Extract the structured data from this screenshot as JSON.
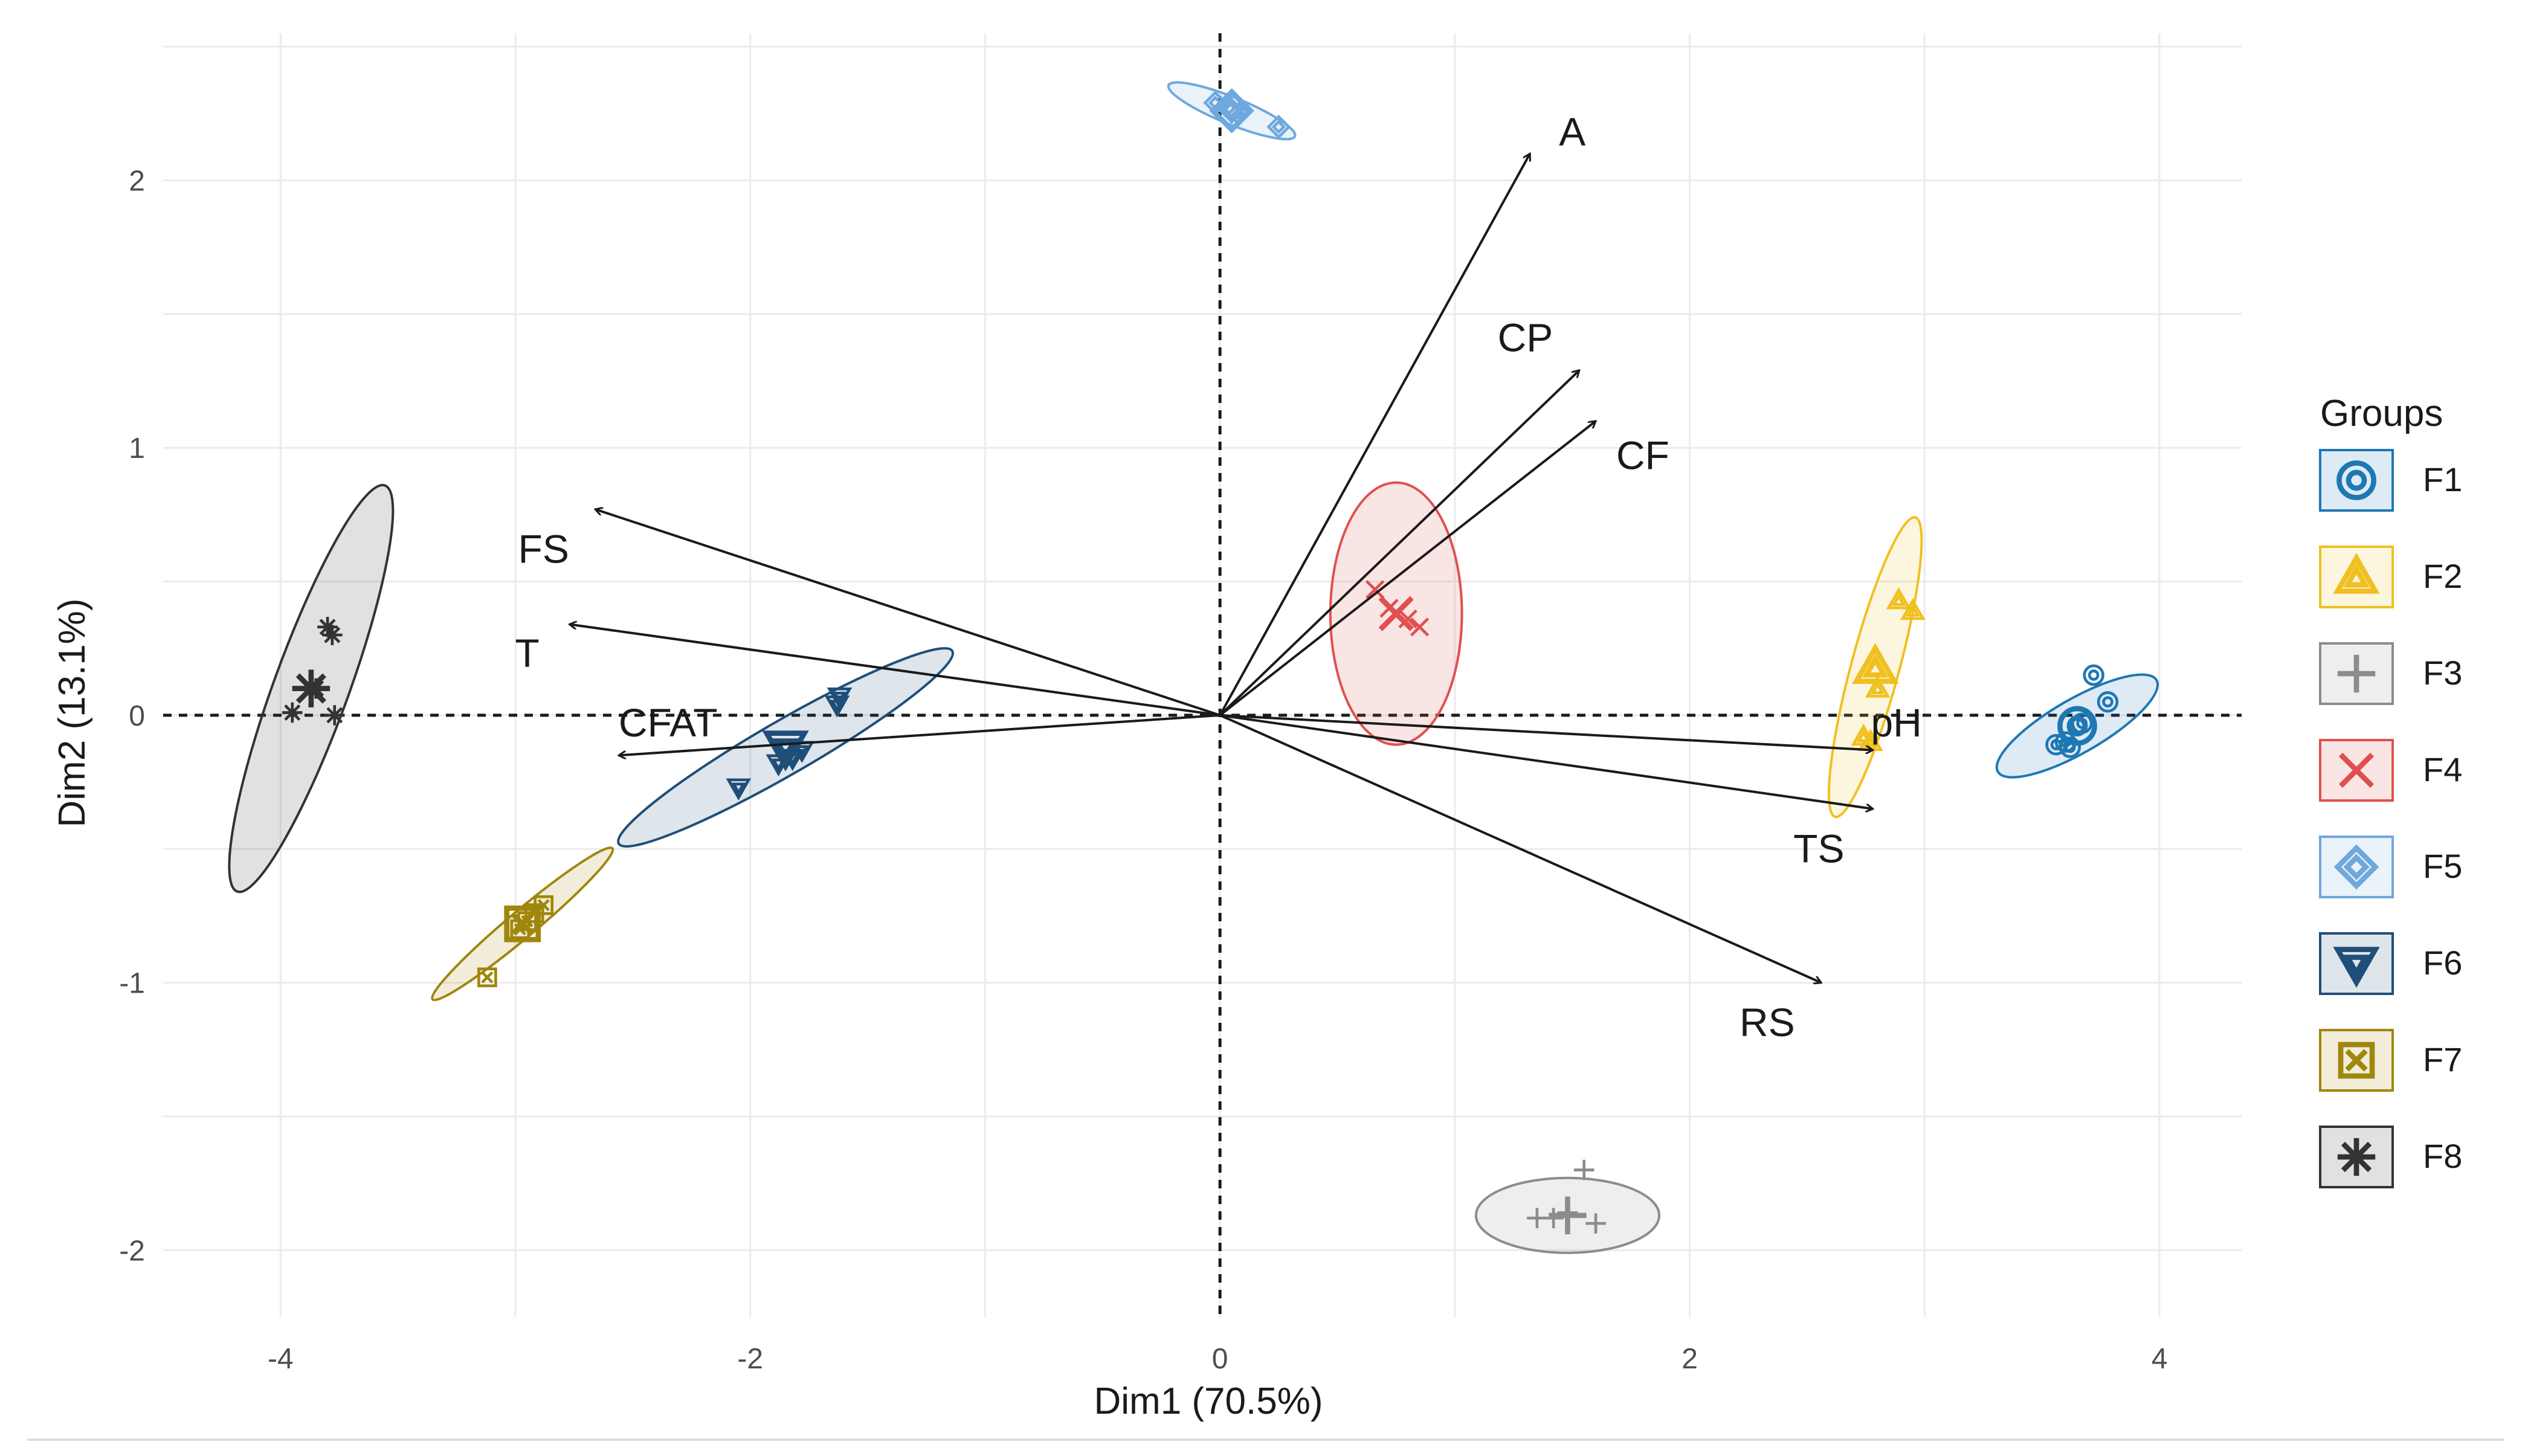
{
  "chart_data": {
    "type": "scatter",
    "subtype": "pca-biplot",
    "title": "",
    "xlabel": "Dim1 (70.5%)",
    "ylabel": "Dim2 (13.1%)",
    "xlim": [
      -4.5,
      4.35
    ],
    "ylim": [
      -2.25,
      2.55
    ],
    "x_ticks": [
      -4,
      -2,
      0,
      2,
      4
    ],
    "y_ticks": [
      -2,
      -1,
      0,
      1,
      2
    ],
    "x_tick_labels": [
      "-4",
      "-2",
      "0",
      "2",
      "4"
    ],
    "y_tick_labels": [
      "-2",
      "-1",
      "0",
      "1",
      "2"
    ],
    "grid": true,
    "reference_lines": {
      "x": 0,
      "y": 0,
      "style": "dashed"
    },
    "legend": {
      "title": "Groups",
      "placement": "right",
      "items": [
        {
          "label": "F1",
          "color": "#1f77b4",
          "symbol": "circle-plus"
        },
        {
          "label": "F2",
          "color": "#f0c020",
          "symbol": "triangle"
        },
        {
          "label": "F3",
          "color": "#8c8c8c",
          "symbol": "plus"
        },
        {
          "label": "F4",
          "color": "#e05050",
          "symbol": "cross"
        },
        {
          "label": "F5",
          "color": "#6fa8dc",
          "symbol": "diamond"
        },
        {
          "label": "F6",
          "color": "#1f4e79",
          "symbol": "triangle-down"
        },
        {
          "label": "F7",
          "color": "#a0860a",
          "symbol": "square-x"
        },
        {
          "label": "F8",
          "color": "#333333",
          "symbol": "asterisk"
        }
      ]
    },
    "variables": [
      {
        "name": "A",
        "x": 1.32,
        "y": 2.1,
        "label_x": 1.5,
        "label_y": 2.18
      },
      {
        "name": "CP",
        "x": 1.53,
        "y": 1.29,
        "label_x": 1.3,
        "label_y": 1.41
      },
      {
        "name": "CF",
        "x": 1.6,
        "y": 1.1,
        "label_x": 1.8,
        "label_y": 0.97
      },
      {
        "name": "FS",
        "x": -2.66,
        "y": 0.77,
        "label_x": -2.88,
        "label_y": 0.62
      },
      {
        "name": "T",
        "x": -2.77,
        "y": 0.34,
        "label_x": -2.95,
        "label_y": 0.23
      },
      {
        "name": "CFAT",
        "x": -2.56,
        "y": -0.15,
        "label_x": -2.35,
        "label_y": -0.03
      },
      {
        "name": "pH",
        "x": 2.78,
        "y": -0.13,
        "label_x": 2.88,
        "label_y": -0.03
      },
      {
        "name": "TS",
        "x": 2.78,
        "y": -0.35,
        "label_x": 2.55,
        "label_y": -0.5
      },
      {
        "name": "RS",
        "x": 2.56,
        "y": -1.0,
        "label_x": 2.33,
        "label_y": -1.15
      }
    ],
    "groups": [
      {
        "name": "F1",
        "center": [
          3.65,
          -0.04
        ],
        "ellipse": {
          "rx": 0.39,
          "ry": 0.1,
          "angle": 30
        },
        "points": [
          [
            3.56,
            -0.11
          ],
          [
            3.6,
            -0.1
          ],
          [
            3.62,
            -0.12
          ],
          [
            3.67,
            -0.03
          ],
          [
            3.72,
            0.15
          ],
          [
            3.78,
            0.05
          ]
        ]
      },
      {
        "name": "F2",
        "center": [
          2.79,
          0.18
        ],
        "ellipse": {
          "rx": 0.66,
          "ry": 0.09,
          "angle": 75
        },
        "points": [
          [
            2.74,
            -0.08
          ],
          [
            2.77,
            -0.1
          ],
          [
            2.8,
            0.1
          ],
          [
            2.89,
            0.43
          ],
          [
            2.95,
            0.39
          ]
        ]
      },
      {
        "name": "F3",
        "center": [
          1.48,
          -1.87
        ],
        "ellipse": {
          "rx": 0.39,
          "ry": 0.14,
          "angle": 0
        },
        "points": [
          [
            1.35,
            -1.88
          ],
          [
            1.42,
            -1.88
          ],
          [
            1.48,
            -1.86
          ],
          [
            1.55,
            -1.7
          ],
          [
            1.6,
            -1.9
          ]
        ]
      },
      {
        "name": "F4",
        "center": [
          0.75,
          0.38
        ],
        "ellipse": {
          "rx": 0.28,
          "ry": 0.49,
          "angle": 0
        },
        "points": [
          [
            0.66,
            0.47
          ],
          [
            0.72,
            0.4
          ],
          [
            0.8,
            0.36
          ],
          [
            0.85,
            0.33
          ]
        ]
      },
      {
        "name": "F5",
        "center": [
          0.05,
          2.26
        ],
        "ellipse": {
          "rx": 0.29,
          "ry": 0.05,
          "angle": -22
        },
        "points": [
          [
            -0.02,
            2.29
          ],
          [
            0.04,
            2.27
          ],
          [
            0.08,
            2.25
          ],
          [
            0.25,
            2.2
          ]
        ]
      },
      {
        "name": "F6",
        "center": [
          -1.85,
          -0.12
        ],
        "ellipse": {
          "rx": 0.82,
          "ry": 0.1,
          "angle": 30
        },
        "points": [
          [
            -2.05,
            -0.27
          ],
          [
            -1.88,
            -0.18
          ],
          [
            -1.82,
            -0.16
          ],
          [
            -1.78,
            -0.13
          ],
          [
            -1.63,
            0.04
          ],
          [
            -1.62,
            0.07
          ]
        ]
      },
      {
        "name": "F7",
        "center": [
          -2.97,
          -0.78
        ],
        "ellipse": {
          "rx": 0.5,
          "ry": 0.05,
          "angle": 40
        },
        "points": [
          [
            -3.12,
            -0.98
          ],
          [
            -2.98,
            -0.8
          ],
          [
            -2.95,
            -0.77
          ],
          [
            -2.92,
            -0.74
          ],
          [
            -2.88,
            -0.71
          ]
        ]
      },
      {
        "name": "F8",
        "center": [
          -3.87,
          0.1
        ],
        "ellipse": {
          "rx": 0.92,
          "ry": 0.14,
          "angle": 70
        },
        "points": [
          [
            -3.95,
            0.01
          ],
          [
            -3.85,
            0.1
          ],
          [
            -3.8,
            0.33
          ],
          [
            -3.78,
            0.3
          ],
          [
            -3.77,
            0.0
          ]
        ]
      }
    ]
  }
}
